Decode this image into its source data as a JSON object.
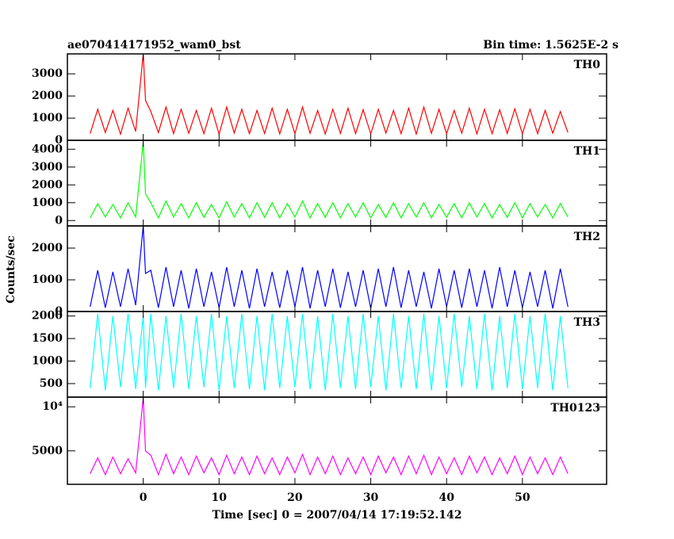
{
  "figure": {
    "title": "ae070414171952_wam0_bst",
    "bin_time": "Bin time: 1.5625E-2 s",
    "y_label": "Counts/sec",
    "x_label": "Time [sec] 0 = 2007/04/14 17:19:52.142"
  },
  "chart_data": [
    {
      "type": "line",
      "label": "TH0",
      "color": "#ff0000",
      "xlim": [
        -10,
        61.1
      ],
      "ylim": [
        0,
        3900
      ],
      "yticks": [
        0,
        1000,
        2000,
        3000
      ],
      "x": [
        -7,
        -6,
        -5,
        -4,
        -3,
        -2,
        -1,
        0,
        0.3,
        1,
        2,
        3,
        4,
        5,
        6,
        7,
        8,
        9,
        10,
        11,
        12,
        13,
        14,
        15,
        16,
        17,
        18,
        19,
        20,
        21,
        22,
        23,
        24,
        25,
        26,
        27,
        28,
        29,
        30,
        31,
        32,
        33,
        34,
        35,
        36,
        37,
        38,
        39,
        40,
        41,
        42,
        43,
        44,
        45,
        46,
        47,
        48,
        49,
        50,
        51,
        52,
        53,
        54,
        55,
        56
      ],
      "values": [
        300,
        1400,
        350,
        1350,
        280,
        1450,
        400,
        3900,
        1800,
        1300,
        350,
        1500,
        300,
        1400,
        320,
        1350,
        300,
        1450,
        280,
        1500,
        330,
        1400,
        300,
        1350,
        310,
        1450,
        290,
        1400,
        300,
        1500,
        320,
        1350,
        280,
        1400,
        310,
        1450,
        300,
        1380,
        290,
        1400,
        330,
        1350,
        300,
        1450,
        280,
        1500,
        310,
        1400,
        300,
        1350,
        320,
        1450,
        290,
        1400,
        300,
        1380,
        310,
        1420,
        290,
        1400,
        300,
        1350,
        320,
        1300,
        350
      ]
    },
    {
      "type": "line",
      "label": "TH1",
      "color": "#00ff00",
      "xlim": [
        -10,
        61.1
      ],
      "ylim": [
        -300,
        4500
      ],
      "yticks": [
        0,
        1000,
        2000,
        3000,
        4000
      ],
      "x": [
        -7,
        -6,
        -5,
        -4,
        -3,
        -2,
        -1,
        0,
        0.3,
        1,
        2,
        3,
        4,
        5,
        6,
        7,
        8,
        9,
        10,
        11,
        12,
        13,
        14,
        15,
        16,
        17,
        18,
        19,
        20,
        21,
        22,
        23,
        24,
        25,
        26,
        27,
        28,
        29,
        30,
        31,
        32,
        33,
        34,
        35,
        36,
        37,
        38,
        39,
        40,
        41,
        42,
        43,
        44,
        45,
        46,
        47,
        48,
        49,
        50,
        51,
        52,
        53,
        54,
        55,
        56
      ],
      "values": [
        150,
        950,
        200,
        900,
        150,
        1000,
        200,
        4400,
        1500,
        1000,
        150,
        1100,
        200,
        950,
        150,
        1000,
        180,
        900,
        150,
        1050,
        200,
        950,
        150,
        1000,
        180,
        1000,
        150,
        950,
        200,
        1100,
        150,
        950,
        180,
        1000,
        150,
        950,
        200,
        1000,
        150,
        900,
        180,
        1000,
        150,
        950,
        200,
        1000,
        150,
        900,
        180,
        950,
        150,
        1000,
        200,
        950,
        150,
        900,
        180,
        1000,
        150,
        950,
        200,
        900,
        150,
        950,
        200
      ]
    },
    {
      "type": "line",
      "label": "TH2",
      "color": "#0000ff",
      "xlim": [
        -10,
        61.1
      ],
      "ylim": [
        0,
        2700
      ],
      "yticks": [
        0,
        1000,
        2000
      ],
      "x": [
        -7,
        -6,
        -5,
        -4,
        -3,
        -2,
        -1,
        0,
        0.3,
        1,
        2,
        3,
        4,
        5,
        6,
        7,
        8,
        9,
        10,
        11,
        12,
        13,
        14,
        15,
        16,
        17,
        18,
        19,
        20,
        21,
        22,
        23,
        24,
        25,
        26,
        27,
        28,
        29,
        30,
        31,
        32,
        33,
        34,
        35,
        36,
        37,
        38,
        39,
        40,
        41,
        42,
        43,
        44,
        45,
        46,
        47,
        48,
        49,
        50,
        51,
        52,
        53,
        54,
        55,
        56
      ],
      "values": [
        150,
        1300,
        120,
        1250,
        150,
        1350,
        200,
        2700,
        1200,
        1300,
        120,
        1400,
        150,
        1300,
        100,
        1350,
        150,
        1250,
        120,
        1400,
        150,
        1300,
        100,
        1350,
        150,
        1250,
        120,
        1300,
        150,
        1400,
        100,
        1300,
        150,
        1350,
        120,
        1250,
        150,
        1300,
        100,
        1350,
        150,
        1400,
        120,
        1300,
        150,
        1250,
        100,
        1350,
        150,
        1300,
        120,
        1350,
        150,
        1300,
        100,
        1400,
        150,
        1300,
        120,
        1250,
        150,
        1300,
        100,
        1350,
        150
      ]
    },
    {
      "type": "line",
      "label": "TH3",
      "color": "#00ffff",
      "xlim": [
        -10,
        61.1
      ],
      "ylim": [
        200,
        2100
      ],
      "yticks": [
        500,
        1000,
        1500,
        2000
      ],
      "x": [
        -7,
        -6,
        -5,
        -4,
        -3,
        -2,
        -1,
        0,
        0.3,
        1,
        2,
        3,
        4,
        5,
        6,
        7,
        8,
        9,
        10,
        11,
        12,
        13,
        14,
        15,
        16,
        17,
        18,
        19,
        20,
        21,
        22,
        23,
        24,
        25,
        26,
        27,
        28,
        29,
        30,
        31,
        32,
        33,
        34,
        35,
        36,
        37,
        38,
        39,
        40,
        41,
        42,
        43,
        44,
        45,
        46,
        47,
        48,
        49,
        50,
        51,
        52,
        53,
        54,
        55,
        56
      ],
      "values": [
        400,
        2050,
        350,
        2000,
        420,
        2050,
        380,
        2000,
        400,
        2050,
        350,
        2000,
        400,
        2050,
        380,
        2000,
        420,
        2050,
        350,
        2000,
        400,
        2050,
        380,
        2000,
        350,
        2050,
        400,
        2000,
        420,
        2050,
        380,
        2000,
        350,
        2050,
        400,
        2000,
        380,
        2050,
        420,
        2000,
        350,
        2050,
        400,
        2000,
        380,
        2050,
        350,
        2000,
        400,
        2050,
        420,
        2000,
        380,
        2050,
        350,
        2000,
        400,
        2050,
        380,
        2000,
        400,
        2050,
        350,
        2000,
        400
      ]
    },
    {
      "type": "line",
      "label": "TH0123",
      "color": "#ff00ff",
      "xlim": [
        -10,
        61.1
      ],
      "ylim": [
        1200,
        11100
      ],
      "yticks": [
        5000,
        {
          "value": 10000,
          "label": "10⁴"
        }
      ],
      "xticks": [
        0,
        10,
        20,
        30,
        40,
        50
      ],
      "x": [
        -7,
        -6,
        -5,
        -4,
        -3,
        -2,
        -1,
        0,
        0.3,
        1,
        2,
        3,
        4,
        5,
        6,
        7,
        8,
        9,
        10,
        11,
        12,
        13,
        14,
        15,
        16,
        17,
        18,
        19,
        20,
        21,
        22,
        23,
        24,
        25,
        26,
        27,
        28,
        29,
        30,
        31,
        32,
        33,
        34,
        35,
        36,
        37,
        38,
        39,
        40,
        41,
        42,
        43,
        44,
        45,
        46,
        47,
        48,
        49,
        50,
        51,
        52,
        53,
        54,
        55,
        56
      ],
      "values": [
        2400,
        4200,
        2300,
        4300,
        2400,
        4100,
        2500,
        11000,
        5000,
        4500,
        2300,
        4600,
        2400,
        4300,
        2300,
        4400,
        2500,
        4200,
        2300,
        4500,
        2400,
        4300,
        2300,
        4400,
        2400,
        4200,
        2300,
        4300,
        2500,
        4600,
        2300,
        4300,
        2400,
        4400,
        2300,
        4200,
        2400,
        4300,
        2300,
        4400,
        2500,
        4300,
        2300,
        4400,
        2400,
        4500,
        2300,
        4300,
        2400,
        4200,
        2300,
        4400,
        2500,
        4300,
        2300,
        4200,
        2400,
        4400,
        2300,
        4300,
        2400,
        4200,
        2300,
        4300,
        2400
      ]
    }
  ]
}
